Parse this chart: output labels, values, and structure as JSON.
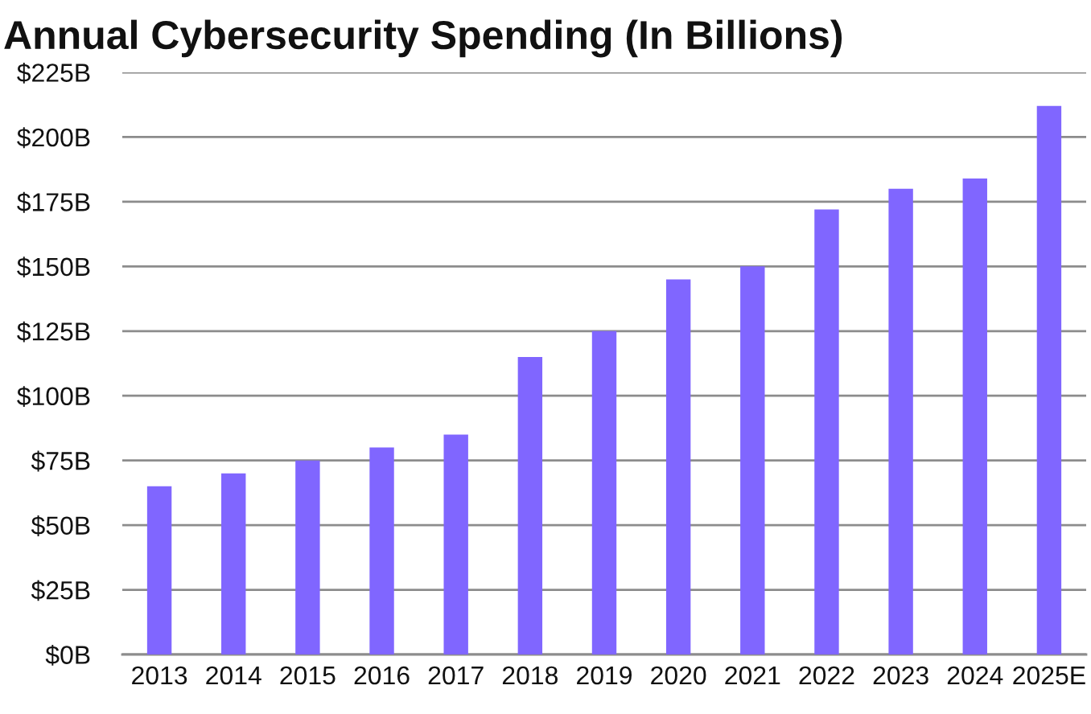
{
  "chart_data": {
    "type": "bar",
    "title": "Annual Cybersecurity Spending (In Billions)",
    "categories": [
      "2013",
      "2014",
      "2015",
      "2016",
      "2017",
      "2018",
      "2019",
      "2020",
      "2021",
      "2022",
      "2023",
      "2024",
      "2025E"
    ],
    "values": [
      65,
      70,
      75,
      80,
      85,
      115,
      125,
      145,
      150,
      172,
      180,
      184,
      212
    ],
    "color": "#8066ff",
    "ylim": [
      0,
      225
    ],
    "yticks": [
      {
        "value": 0,
        "label": "$0B"
      },
      {
        "value": 25,
        "label": "$25B"
      },
      {
        "value": 50,
        "label": "$50B"
      },
      {
        "value": 75,
        "label": "$75B"
      },
      {
        "value": 100,
        "label": "$100B"
      },
      {
        "value": 125,
        "label": "$125B"
      },
      {
        "value": 150,
        "label": "$150B"
      },
      {
        "value": 175,
        "label": "$175B"
      },
      {
        "value": 200,
        "label": "$200B"
      },
      {
        "value": 225,
        "label": "$225B"
      }
    ],
    "grid": "y"
  }
}
